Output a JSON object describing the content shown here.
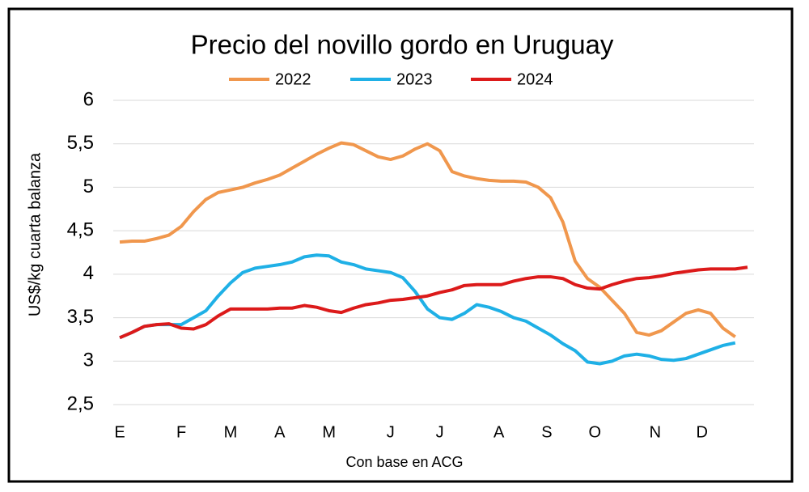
{
  "chart_data": {
    "type": "line",
    "title": "Precio del novillo gordo en Uruguay",
    "y_label": "US$/kg cuarta balanza",
    "x_label": "Con base en ACG",
    "xlim": [
      1,
      52
    ],
    "xticks": [
      {
        "value": 1,
        "label": "E"
      },
      {
        "value": 6,
        "label": "F"
      },
      {
        "value": 10,
        "label": "M"
      },
      {
        "value": 14,
        "label": "A"
      },
      {
        "value": 18,
        "label": "M"
      },
      {
        "value": 23,
        "label": "J"
      },
      {
        "value": 27,
        "label": "J"
      },
      {
        "value": 31.8,
        "label": "A"
      },
      {
        "value": 35.7,
        "label": "S"
      },
      {
        "value": 39.6,
        "label": "O"
      },
      {
        "value": 44.5,
        "label": "N"
      },
      {
        "value": 48.3,
        "label": "D"
      }
    ],
    "ylim": [
      2.5,
      6
    ],
    "yticks": [
      {
        "value": 2.5,
        "label": "2,5"
      },
      3,
      {
        "value": 3.5,
        "label": "3,5"
      },
      4,
      {
        "value": 4.5,
        "label": "4,5"
      },
      5,
      {
        "value": 5.5,
        "label": "5,5"
      },
      6
    ],
    "grid": true,
    "legend": "top",
    "x": [
      1,
      2,
      3,
      4,
      5,
      6,
      7,
      8,
      9,
      10,
      11,
      12,
      13,
      14,
      15,
      16,
      17,
      18,
      19,
      20,
      21,
      22,
      23,
      24,
      25,
      26,
      27,
      28,
      29,
      30,
      31,
      32,
      33,
      34,
      35,
      36,
      37,
      38,
      39,
      40,
      41,
      42,
      43,
      44,
      45,
      46,
      47,
      48,
      49,
      50,
      51,
      52
    ],
    "series": [
      {
        "name": "2022",
        "color": "#f0974d",
        "values": [
          4.37,
          4.38,
          4.38,
          4.41,
          4.45,
          4.55,
          4.72,
          4.86,
          4.94,
          4.97,
          5.0,
          5.05,
          5.09,
          5.14,
          5.22,
          5.3,
          5.38,
          5.45,
          5.51,
          5.49,
          5.42,
          5.35,
          5.32,
          5.36,
          5.44,
          5.5,
          5.42,
          5.18,
          5.13,
          5.1,
          5.08,
          5.07,
          5.07,
          5.06,
          5.0,
          4.88,
          4.6,
          4.15,
          3.95,
          3.85,
          3.7,
          3.55,
          3.33,
          3.3,
          3.35,
          3.45,
          3.55,
          3.59,
          3.55,
          3.38,
          3.28,
          null
        ]
      },
      {
        "name": "2023",
        "color": "#1fb0e6",
        "values": [
          3.27,
          3.33,
          3.4,
          3.42,
          3.42,
          3.42,
          3.5,
          3.58,
          3.75,
          3.9,
          4.02,
          4.07,
          4.09,
          4.11,
          4.14,
          4.2,
          4.22,
          4.21,
          4.14,
          4.11,
          4.06,
          4.04,
          4.02,
          3.96,
          3.8,
          3.6,
          3.5,
          3.48,
          3.55,
          3.65,
          3.62,
          3.57,
          3.5,
          3.46,
          3.38,
          3.3,
          3.2,
          3.12,
          2.99,
          2.97,
          3.0,
          3.06,
          3.08,
          3.06,
          3.02,
          3.01,
          3.03,
          3.08,
          3.13,
          3.18,
          3.21,
          null
        ]
      },
      {
        "name": "2024",
        "color": "#dc1a1a",
        "values": [
          3.27,
          3.33,
          3.4,
          3.42,
          3.43,
          3.38,
          3.37,
          3.42,
          3.52,
          3.6,
          3.6,
          3.6,
          3.6,
          3.61,
          3.61,
          3.64,
          3.62,
          3.58,
          3.56,
          3.61,
          3.65,
          3.67,
          3.7,
          3.71,
          3.73,
          3.75,
          3.79,
          3.82,
          3.87,
          3.88,
          3.88,
          3.88,
          3.92,
          3.95,
          3.97,
          3.97,
          3.95,
          3.88,
          3.84,
          3.83,
          3.88,
          3.92,
          3.95,
          3.96,
          3.98,
          4.01,
          4.03,
          4.05,
          4.06,
          4.06,
          4.06,
          4.08
        ]
      }
    ]
  }
}
